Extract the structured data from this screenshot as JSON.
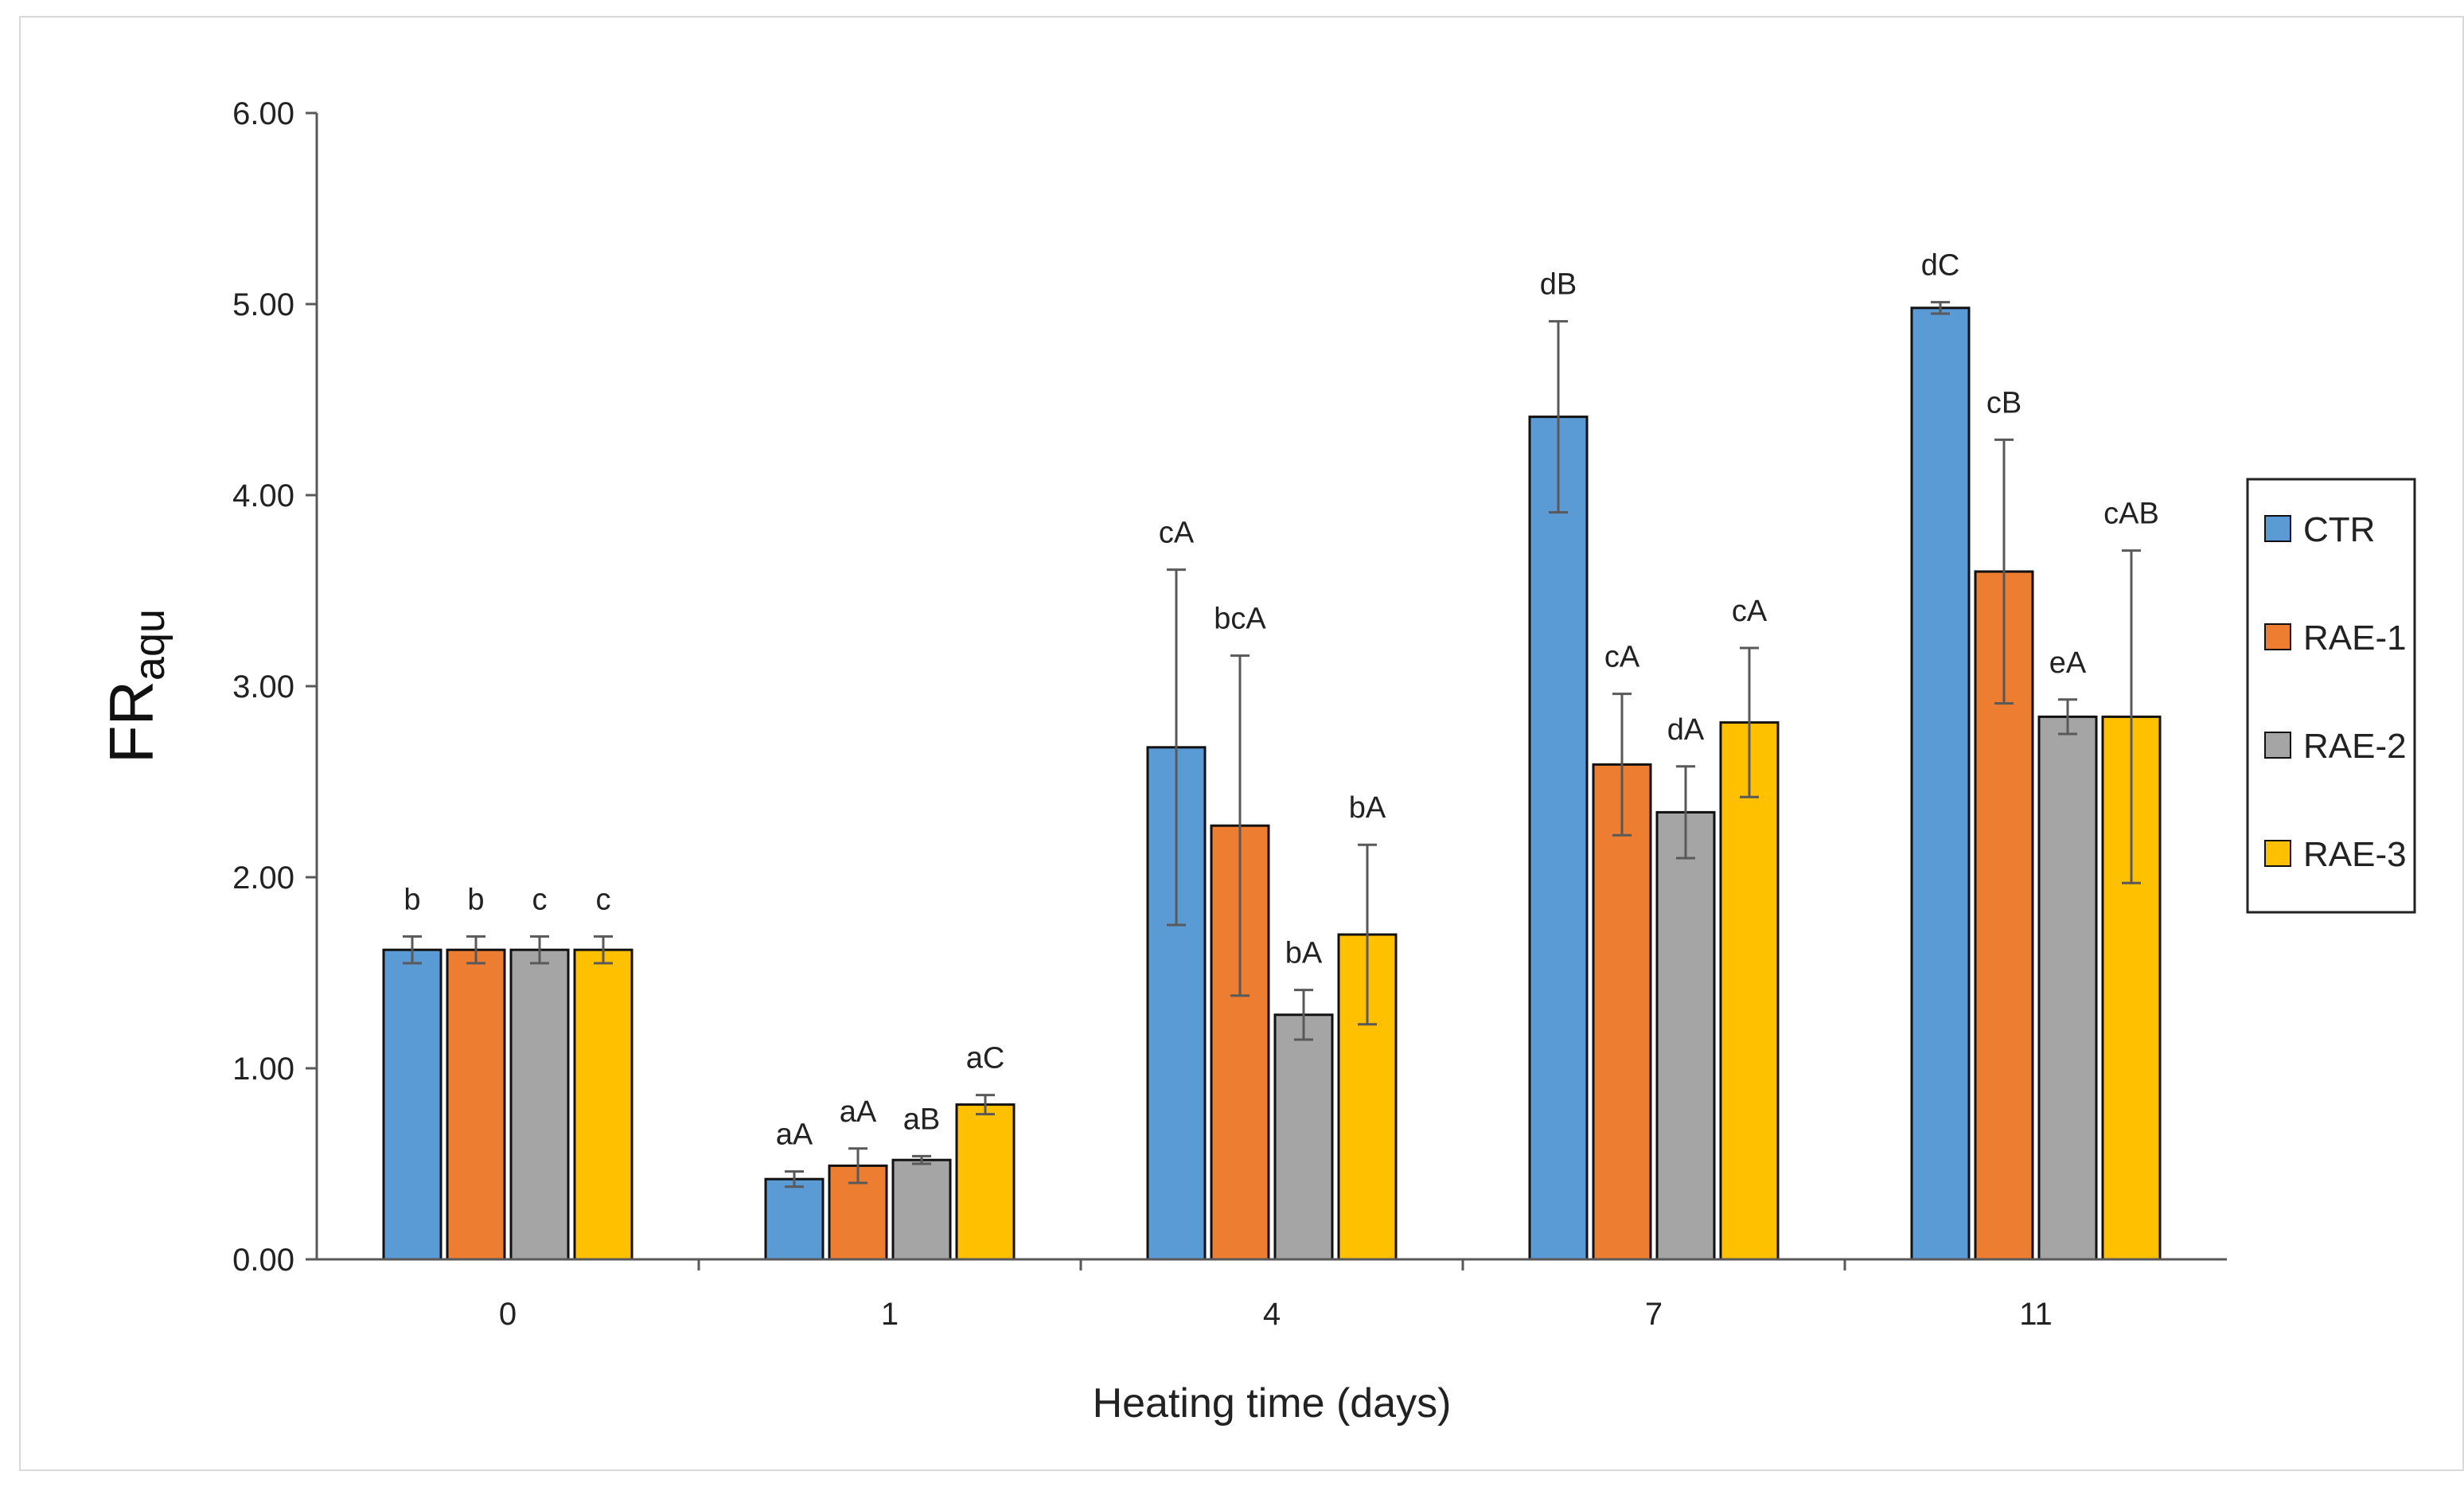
{
  "chart_data": {
    "type": "bar",
    "title": "",
    "xlabel": "Heating time (days)",
    "ylabel": "FR",
    "ylabel_subscript": "aqu",
    "ylim": [
      0,
      6
    ],
    "yticks": [
      "0.00",
      "1.00",
      "2.00",
      "3.00",
      "4.00",
      "5.00",
      "6.00"
    ],
    "categories": [
      "0",
      "1",
      "4",
      "7",
      "11"
    ],
    "legend_position": "right",
    "series": [
      {
        "name": "CTR",
        "color": "#5B9BD5",
        "values": [
          1.62,
          0.42,
          2.68,
          4.41,
          4.98
        ],
        "errors": [
          0.07,
          0.04,
          0.93,
          0.5,
          0.03
        ],
        "labels": [
          "b",
          "aA",
          "cA",
          "dB",
          "dC"
        ]
      },
      {
        "name": "RAE-1",
        "color": "#ED7D31",
        "values": [
          1.62,
          0.49,
          2.27,
          2.59,
          3.6
        ],
        "errors": [
          0.07,
          0.09,
          0.89,
          0.37,
          0.69
        ],
        "labels": [
          "b",
          "aA",
          "bcA",
          "cA",
          "cB"
        ]
      },
      {
        "name": "RAE-2",
        "color": "#A5A5A5",
        "values": [
          1.62,
          0.52,
          1.28,
          2.34,
          2.84
        ],
        "errors": [
          0.07,
          0.02,
          0.13,
          0.24,
          0.09
        ],
        "labels": [
          "c",
          "aB",
          "bA",
          "dA",
          "eA"
        ]
      },
      {
        "name": "RAE-3",
        "color": "#FFC000",
        "values": [
          1.62,
          0.81,
          1.7,
          2.81,
          2.84
        ],
        "errors": [
          0.07,
          0.05,
          0.47,
          0.39,
          0.87
        ],
        "labels": [
          "c",
          "aC",
          "bA",
          "cA",
          "cAB"
        ]
      }
    ]
  }
}
